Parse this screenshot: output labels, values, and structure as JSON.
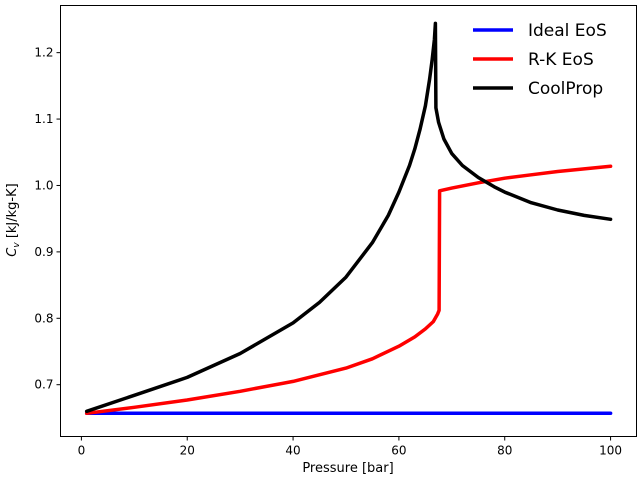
{
  "chart_data": {
    "type": "line",
    "title": "",
    "xlabel": "Pressure [bar]",
    "ylabel": "C_v [kJ/kg-K]",
    "xlim": [
      -3.95,
      104.9
    ],
    "ylim": [
      0.622,
      1.271
    ],
    "xticks": [
      0,
      20,
      40,
      60,
      80,
      100
    ],
    "yticks": [
      0.7,
      0.8,
      0.9,
      1.0,
      1.1,
      1.2
    ],
    "ytick_labels": [
      "0.7",
      "0.8",
      "0.9",
      "1.0",
      "1.1",
      "1.2"
    ],
    "grid": false,
    "legend": "top-right",
    "series": [
      {
        "name": "Ideal EoS",
        "color": "#0000ff",
        "x": [
          1,
          100
        ],
        "y": [
          0.657,
          0.657
        ]
      },
      {
        "name": "R-K EoS",
        "color": "#ff0000",
        "x": [
          1,
          10,
          20,
          30,
          40,
          50,
          55,
          60,
          63,
          65,
          66.5,
          67.3,
          67.6,
          67.7,
          70,
          75,
          80,
          85,
          90,
          95,
          100
        ],
        "y": [
          0.657,
          0.666,
          0.677,
          0.69,
          0.705,
          0.725,
          0.739,
          0.758,
          0.772,
          0.784,
          0.795,
          0.806,
          0.812,
          0.992,
          0.996,
          1.004,
          1.011,
          1.016,
          1.021,
          1.025,
          1.029
        ]
      },
      {
        "name": "CoolProp",
        "color": "#000000",
        "x": [
          1,
          10,
          20,
          30,
          40,
          45,
          50,
          55,
          58,
          60,
          62,
          63,
          64,
          65,
          65.8,
          66.3,
          66.7,
          66.9,
          67.0,
          67.5,
          68.5,
          70,
          72,
          75,
          78,
          80,
          85,
          90,
          95,
          100
        ],
        "y": [
          0.66,
          0.684,
          0.711,
          0.747,
          0.793,
          0.824,
          0.862,
          0.914,
          0.955,
          0.99,
          1.03,
          1.055,
          1.085,
          1.12,
          1.16,
          1.19,
          1.22,
          1.244,
          1.117,
          1.095,
          1.07,
          1.048,
          1.03,
          1.012,
          0.998,
          0.99,
          0.974,
          0.963,
          0.955,
          0.949
        ]
      }
    ]
  }
}
